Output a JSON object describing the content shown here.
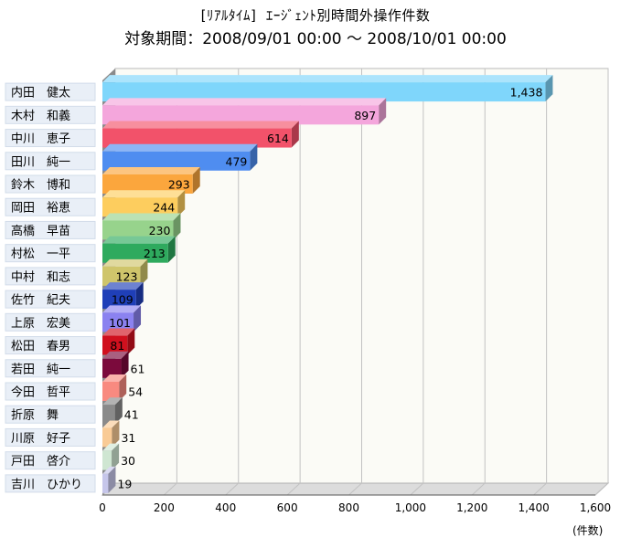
{
  "chart_data": {
    "type": "bar",
    "orientation": "horizontal",
    "title": "[ﾘｱﾙﾀｲﾑ]  ｴｰｼﾞｪﾝﾄ別時間外操作件数",
    "subtitle": "対象期間：2008/09/01 00:00 ～ 2008/10/01 00:00",
    "unit_label": "(件数)",
    "xlim": [
      0,
      1600
    ],
    "x_ticks": [
      "0",
      "200",
      "400",
      "600",
      "800",
      "1,000",
      "1,200",
      "1,400",
      "1,600"
    ],
    "grid": true,
    "legend": "none",
    "categories": [
      "内田　健太",
      "木村　和義",
      "中川　恵子",
      "田川　純一",
      "鈴木　博和",
      "岡田　裕恵",
      "高橋　早苗",
      "村松　一平",
      "中村　和志",
      "佐竹　紀夫",
      "上原　宏美",
      "松田　春男",
      "若田　純一",
      "今田　哲平",
      "折原　舞",
      "川原　好子",
      "戸田　啓介",
      "吉川　ひかり"
    ],
    "values": [
      1438,
      897,
      614,
      479,
      293,
      244,
      230,
      213,
      123,
      109,
      101,
      81,
      61,
      54,
      41,
      31,
      30,
      19
    ],
    "value_labels": [
      "1,438",
      "897",
      "614",
      "479",
      "293",
      "244",
      "230",
      "213",
      "123",
      "109",
      "101",
      "81",
      "61",
      "54",
      "41",
      "31",
      "30",
      "19"
    ],
    "colors": [
      "#7fd6fb",
      "#f4a6dc",
      "#f2526a",
      "#4f8df0",
      "#fba63d",
      "#fdcd5e",
      "#97d38c",
      "#2eaa5e",
      "#cfc56b",
      "#1f3fb8",
      "#8b82f0",
      "#d0101e",
      "#7b0a3c",
      "#f88a80",
      "#8a8a8a",
      "#f9cb96",
      "#cfe6d2",
      "#c6c6ea"
    ]
  }
}
